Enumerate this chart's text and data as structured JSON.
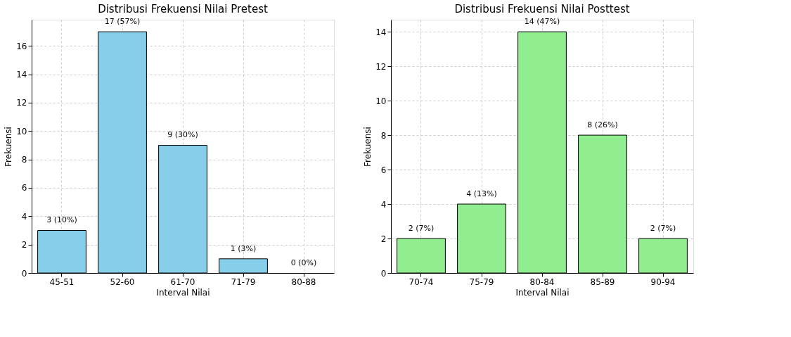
{
  "chart_data": [
    {
      "type": "bar",
      "title": "Distribusi Frekuensi Nilai Pretest",
      "xlabel": "Interval Nilai",
      "ylabel": "Frekuensi",
      "categories": [
        "45-51",
        "52-60",
        "61-70",
        "71-79",
        "80-88"
      ],
      "values": [
        3,
        17,
        9,
        1,
        0
      ],
      "color": "#87ceeb",
      "value_labels": [
        "3 (10%)",
        "17 (57%)",
        "9 (30%)",
        "1 (3%)",
        "0 (0%)"
      ],
      "ylim": [
        0,
        17.85
      ],
      "yticks": [
        0,
        2,
        4,
        6,
        8,
        10,
        12,
        14,
        16
      ],
      "grid": true
    },
    {
      "type": "bar",
      "title": "Distribusi Frekuensi Nilai Posttest",
      "xlabel": "Interval Nilai",
      "ylabel": "Frekuensi",
      "categories": [
        "70-74",
        "75-79",
        "80-84",
        "85-89",
        "90-94"
      ],
      "values": [
        2,
        4,
        14,
        8,
        2
      ],
      "color": "#90ee90",
      "value_labels": [
        "2 (7%)",
        "4 (13%)",
        "14 (47%)",
        "8 (26%)",
        "2 (7%)"
      ],
      "ylim": [
        0,
        14.7
      ],
      "yticks": [
        0,
        2,
        4,
        6,
        8,
        10,
        12,
        14
      ],
      "grid": true
    }
  ]
}
